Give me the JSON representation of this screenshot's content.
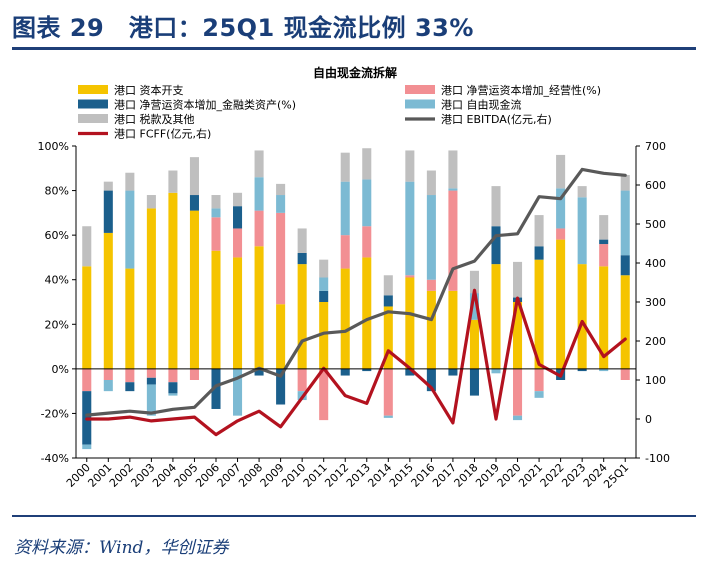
{
  "page": {
    "title": "图表 29　港口：25Q1 现金流比例 33%",
    "source": "资料来源：Wind，华创证券"
  },
  "chart_data": {
    "type": "bar",
    "title": "自由现金流拆解",
    "categories": [
      "2000",
      "2001",
      "2002",
      "2003",
      "2004",
      "2005",
      "2006",
      "2007",
      "2008",
      "2009",
      "2010",
      "2011",
      "2012",
      "2013",
      "2014",
      "2015",
      "2016",
      "2017",
      "2018",
      "2019",
      "2020",
      "2021",
      "2022",
      "2023",
      "2024",
      "25Q1"
    ],
    "y_left": {
      "min": -40,
      "max": 100,
      "ticks": [
        "-40%",
        "-20%",
        "0%",
        "20%",
        "40%",
        "60%",
        "80%",
        "100%"
      ]
    },
    "y_right": {
      "min": -100,
      "max": 700,
      "ticks": [
        "-100",
        "0",
        "100",
        "200",
        "300",
        "400",
        "500",
        "600",
        "700"
      ]
    },
    "series": [
      {
        "name": "港口 资本开支",
        "type": "stacked_bar_pct",
        "color": "#f5c400",
        "values": [
          46,
          61,
          45,
          72,
          79,
          71,
          53,
          50,
          55,
          29,
          47,
          30,
          45,
          50,
          28,
          41,
          35,
          35,
          22,
          47,
          30,
          49,
          58,
          47,
          46,
          42
        ]
      },
      {
        "name": "港口 净营运资本增加_经营性(%)",
        "type": "stacked_bar_pct",
        "color": "#f28f93",
        "values": [
          -10,
          -5,
          -6,
          -4,
          -6,
          -5,
          15,
          13,
          16,
          41,
          -10,
          -23,
          15,
          14,
          -21,
          1,
          5,
          45,
          0,
          0,
          -21,
          -10,
          5,
          0,
          10,
          -5
        ]
      },
      {
        "name": "港口 净营运资本增加_金融类资产(%)",
        "type": "stacked_bar_pct",
        "color": "#1b5f8c",
        "values": [
          -24,
          19,
          -4,
          -3,
          -5,
          7,
          -18,
          10,
          -3,
          -16,
          5,
          5,
          -3,
          -1,
          5,
          -3,
          -10,
          -3,
          -12,
          17,
          2,
          6,
          -5,
          -1,
          2,
          9
        ]
      },
      {
        "name": "港口 自由现金流",
        "type": "stacked_bar_pct",
        "color": "#7cbad3",
        "values": [
          -2,
          -5,
          35,
          -14,
          -1,
          0,
          4,
          -21,
          15,
          8,
          -4,
          6,
          24,
          21,
          -1,
          42,
          38,
          1,
          12,
          -2,
          -2,
          -3,
          18,
          30,
          -1,
          29
        ]
      },
      {
        "name": "港口 税款及其他",
        "type": "stacked_bar_pct",
        "color": "#bfbfbf",
        "values": [
          18,
          4,
          8,
          6,
          10,
          17,
          6,
          6,
          12,
          5,
          11,
          8,
          13,
          14,
          9,
          14,
          11,
          17,
          10,
          18,
          16,
          14,
          15,
          5,
          11,
          7
        ]
      },
      {
        "name": "港口 EBITDA(亿元,右)",
        "type": "line",
        "axis": "right",
        "color": "#595959",
        "values": [
          10,
          15,
          20,
          15,
          25,
          30,
          85,
          105,
          130,
          110,
          200,
          220,
          225,
          255,
          275,
          270,
          255,
          385,
          405,
          470,
          475,
          570,
          565,
          640,
          630,
          625
        ]
      },
      {
        "name": "港口 FCFF(亿元,右)",
        "type": "line",
        "axis": "right",
        "color": "#b3121f",
        "values": [
          0,
          0,
          5,
          -5,
          0,
          5,
          -40,
          -5,
          20,
          -20,
          55,
          130,
          60,
          40,
          175,
          130,
          80,
          -10,
          330,
          0,
          310,
          140,
          110,
          250,
          160,
          205
        ]
      }
    ],
    "legend": {
      "items": [
        {
          "label": "港口 资本开支",
          "color": "#f5c400",
          "kind": "bar"
        },
        {
          "label": "港口 净营运资本增加_经营性(%)",
          "color": "#f28f93",
          "kind": "bar"
        },
        {
          "label": "港口 净营运资本增加_金融类资产(%)",
          "color": "#1b5f8c",
          "kind": "bar"
        },
        {
          "label": "港口 自由现金流",
          "color": "#7cbad3",
          "kind": "bar"
        },
        {
          "label": "港口 税款及其他",
          "color": "#bfbfbf",
          "kind": "bar"
        },
        {
          "label": "港口 EBITDA(亿元,右)",
          "color": "#595959",
          "kind": "line"
        },
        {
          "label": "港口 FCFF(亿元,右)",
          "color": "#b3121f",
          "kind": "line"
        }
      ]
    }
  }
}
